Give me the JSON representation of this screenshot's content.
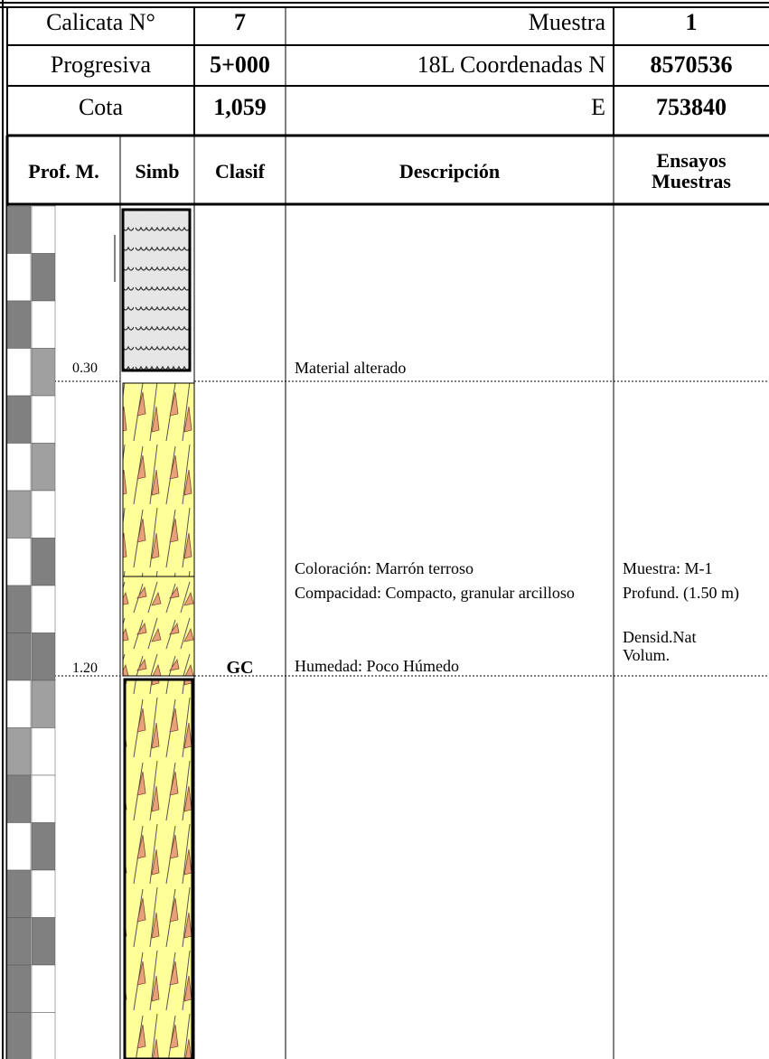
{
  "header": {
    "rows": [
      [
        "Calicata N°",
        "7",
        "Muestra",
        "1"
      ],
      [
        "Progresiva",
        "5+000",
        "18L Coordenadas N",
        "8570536"
      ],
      [
        "Cota",
        "1,059",
        "E",
        "753840"
      ]
    ]
  },
  "columns": [
    "Prof. M.",
    "Simb",
    "Clasif",
    "Descripción",
    "Ensayos Muestras"
  ],
  "layers": [
    {
      "depth": "0.30",
      "description": [
        "Material alterado"
      ]
    },
    {
      "depth": "1.20",
      "clasif": "GC",
      "description": [
        "Coloración: Marrón terroso",
        "Compacidad: Compacto, granular arcilloso",
        "Humedad: Poco Húmedo"
      ],
      "samples": [
        "Muestra: M-1",
        "Profund. (1.50 m)",
        "Densid.Nat Volum."
      ]
    }
  ]
}
